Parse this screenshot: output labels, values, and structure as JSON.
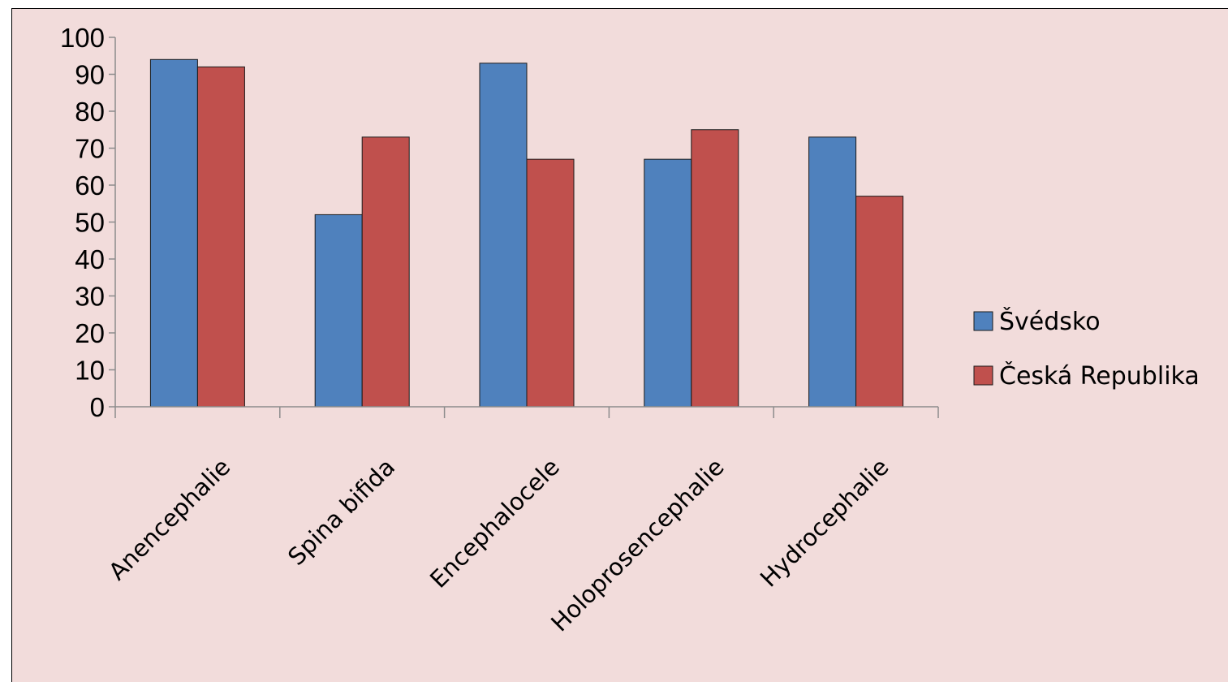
{
  "chart_data": {
    "type": "bar",
    "title": "",
    "xlabel": "",
    "ylabel": "",
    "categories": [
      "Anencephalie",
      "Spina bifida",
      "Encephalocele",
      "Holoprosencephalie",
      "Hydrocephalie"
    ],
    "series": [
      {
        "name": "Švédsko",
        "color": "#4f81bd",
        "values": [
          94,
          52,
          93,
          67,
          73
        ]
      },
      {
        "name": "Česká Republika",
        "color": "#c0504d",
        "values": [
          92,
          73,
          67,
          75,
          57
        ]
      }
    ],
    "ylim": [
      0,
      100
    ],
    "yticks": [
      "0",
      "10",
      "20",
      "30",
      "40",
      "50",
      "60",
      "70",
      "80",
      "90",
      "100"
    ],
    "grid": false,
    "legend_position": "right",
    "background": "#f2dcdb"
  }
}
